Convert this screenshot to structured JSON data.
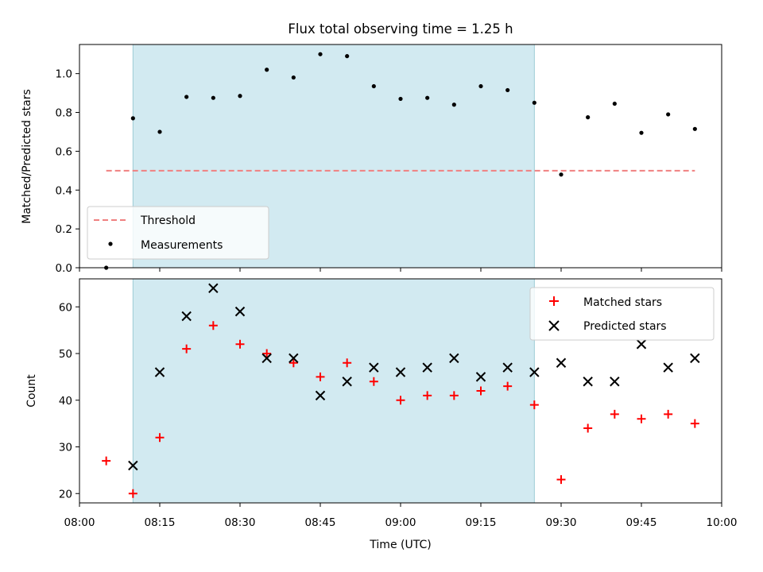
{
  "chart_data": {
    "title": "Flux total observing time = 1.25 h",
    "xlabel": "Time (UTC)",
    "x_ticks": [
      "08:00",
      "08:15",
      "08:30",
      "08:45",
      "09:00",
      "09:15",
      "09:30",
      "09:45",
      "10:00"
    ],
    "x_range": [
      "08:00",
      "10:00"
    ],
    "highlight_span": [
      "08:10",
      "09:25"
    ],
    "highlight_color": "#add8e6",
    "times": [
      "08:05",
      "08:10",
      "08:15",
      "08:20",
      "08:25",
      "08:30",
      "08:35",
      "08:40",
      "08:45",
      "08:50",
      "08:55",
      "09:00",
      "09:05",
      "09:10",
      "09:15",
      "09:20",
      "09:25",
      "09:30",
      "09:35",
      "09:40",
      "09:45",
      "09:50",
      "09:55"
    ],
    "panels": [
      {
        "type": "scatter",
        "ylabel": "Matched/Predicted stars",
        "ylim": [
          0,
          1.15
        ],
        "yticks": [
          "0.0",
          "0.2",
          "0.4",
          "0.6",
          "0.8",
          "1.0"
        ],
        "threshold": {
          "name": "Threshold",
          "value": 0.5,
          "from": "08:05",
          "to": "09:55",
          "color": "#f08080"
        },
        "series": [
          {
            "name": "Measurements",
            "color": "#000000",
            "values": [
              0.0,
              0.77,
              0.7,
              0.88,
              0.875,
              0.885,
              1.02,
              0.98,
              1.1,
              1.09,
              0.935,
              0.87,
              0.875,
              0.84,
              0.935,
              0.915,
              0.85,
              0.48,
              0.775,
              0.845,
              0.695,
              0.79,
              0.715
            ]
          }
        ],
        "legend": "lower-left"
      },
      {
        "type": "scatter",
        "ylabel": "Count",
        "ylim": [
          18,
          66
        ],
        "yticks": [
          "20",
          "30",
          "40",
          "50",
          "60"
        ],
        "series": [
          {
            "name": "Matched stars",
            "marker": "plus",
            "color": "#ff0000",
            "values": [
              27,
              20,
              32,
              51,
              56,
              52,
              50,
              48,
              45,
              48,
              44,
              40,
              41,
              41,
              42,
              43,
              39,
              23,
              34,
              37,
              36,
              37,
              35
            ]
          },
          {
            "name": "Predicted stars",
            "marker": "x",
            "color": "#000000",
            "values": [
              null,
              26,
              46,
              58,
              64,
              59,
              49,
              49,
              41,
              44,
              47,
              46,
              47,
              49,
              45,
              47,
              46,
              48,
              44,
              44,
              52,
              47,
              49
            ]
          }
        ],
        "legend": "upper-right"
      }
    ]
  }
}
